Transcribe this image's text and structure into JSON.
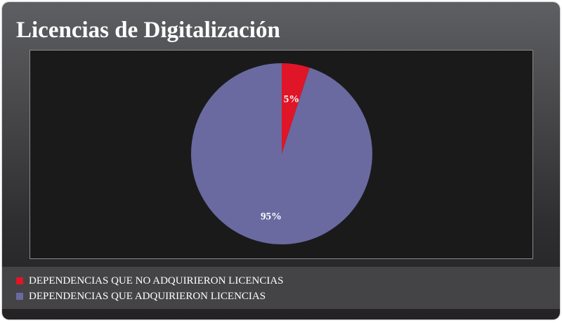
{
  "chart_data": {
    "type": "pie",
    "title": "Licencias de Digitalización",
    "slices": [
      {
        "label": "DEPENDENCIAS QUE NO ADQUIRIERON LICENCIAS",
        "value": 5,
        "display": "5%",
        "color": "#e01527"
      },
      {
        "label": "DEPENDENCIAS QUE ADQUIRIERON LICENCIAS",
        "value": 95,
        "display": "95%",
        "color": "#6a6aa0"
      }
    ],
    "legend_position": "bottom-left"
  }
}
